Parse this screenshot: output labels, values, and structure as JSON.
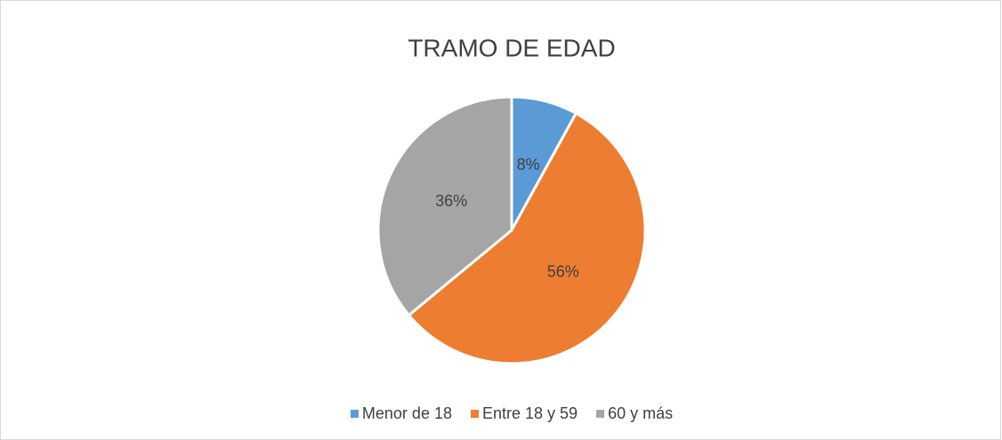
{
  "chart_data": {
    "type": "pie",
    "title": "TRAMO DE EDAD",
    "categories": [
      "Menor de 18",
      "Entre 18 y 59",
      "60 y más"
    ],
    "values": [
      8,
      56,
      36
    ],
    "value_labels": [
      "8%",
      "56%",
      "36%"
    ],
    "colors": [
      "#5b9bd5",
      "#ed7d31",
      "#a5a5a5"
    ],
    "legend": "bottom"
  }
}
